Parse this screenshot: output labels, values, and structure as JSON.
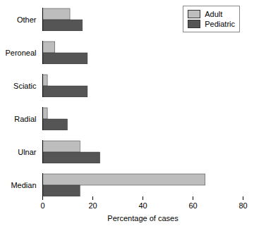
{
  "chart_data": {
    "type": "bar",
    "orientation": "horizontal",
    "x_label": "Percentage of cases",
    "categories": [
      "Other",
      "Peroneal",
      "Sciatic",
      "Radial",
      "Ulnar",
      "Median"
    ],
    "series": [
      {
        "name": "Adult",
        "color": "#bdbdbd",
        "values": [
          11,
          5,
          2,
          2,
          15,
          65
        ]
      },
      {
        "name": "Pediatric",
        "color": "#555555",
        "values": [
          16,
          18,
          18,
          10,
          23,
          15
        ]
      }
    ],
    "xlim": [
      0,
      80
    ],
    "xticks": [
      0,
      20,
      40,
      60,
      80
    ],
    "legend": "top-right"
  }
}
